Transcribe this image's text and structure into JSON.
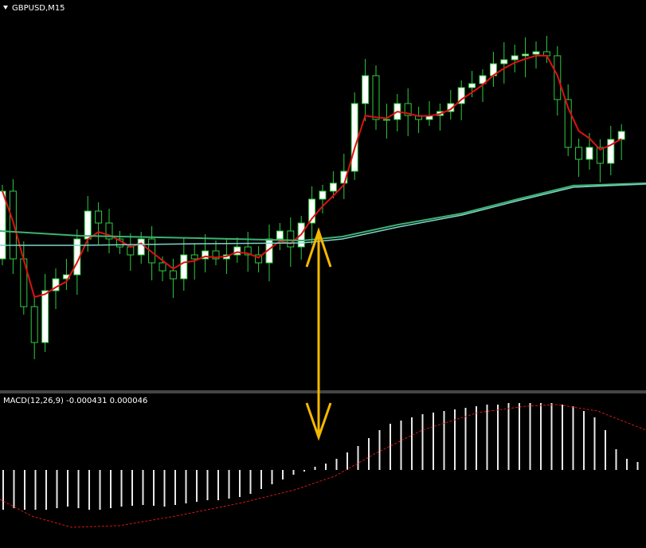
{
  "header": {
    "symbol": "GBPUSD,M15"
  },
  "indicator": {
    "label": "MACD(12,26,9) -0.000431 0.000046"
  }
}
